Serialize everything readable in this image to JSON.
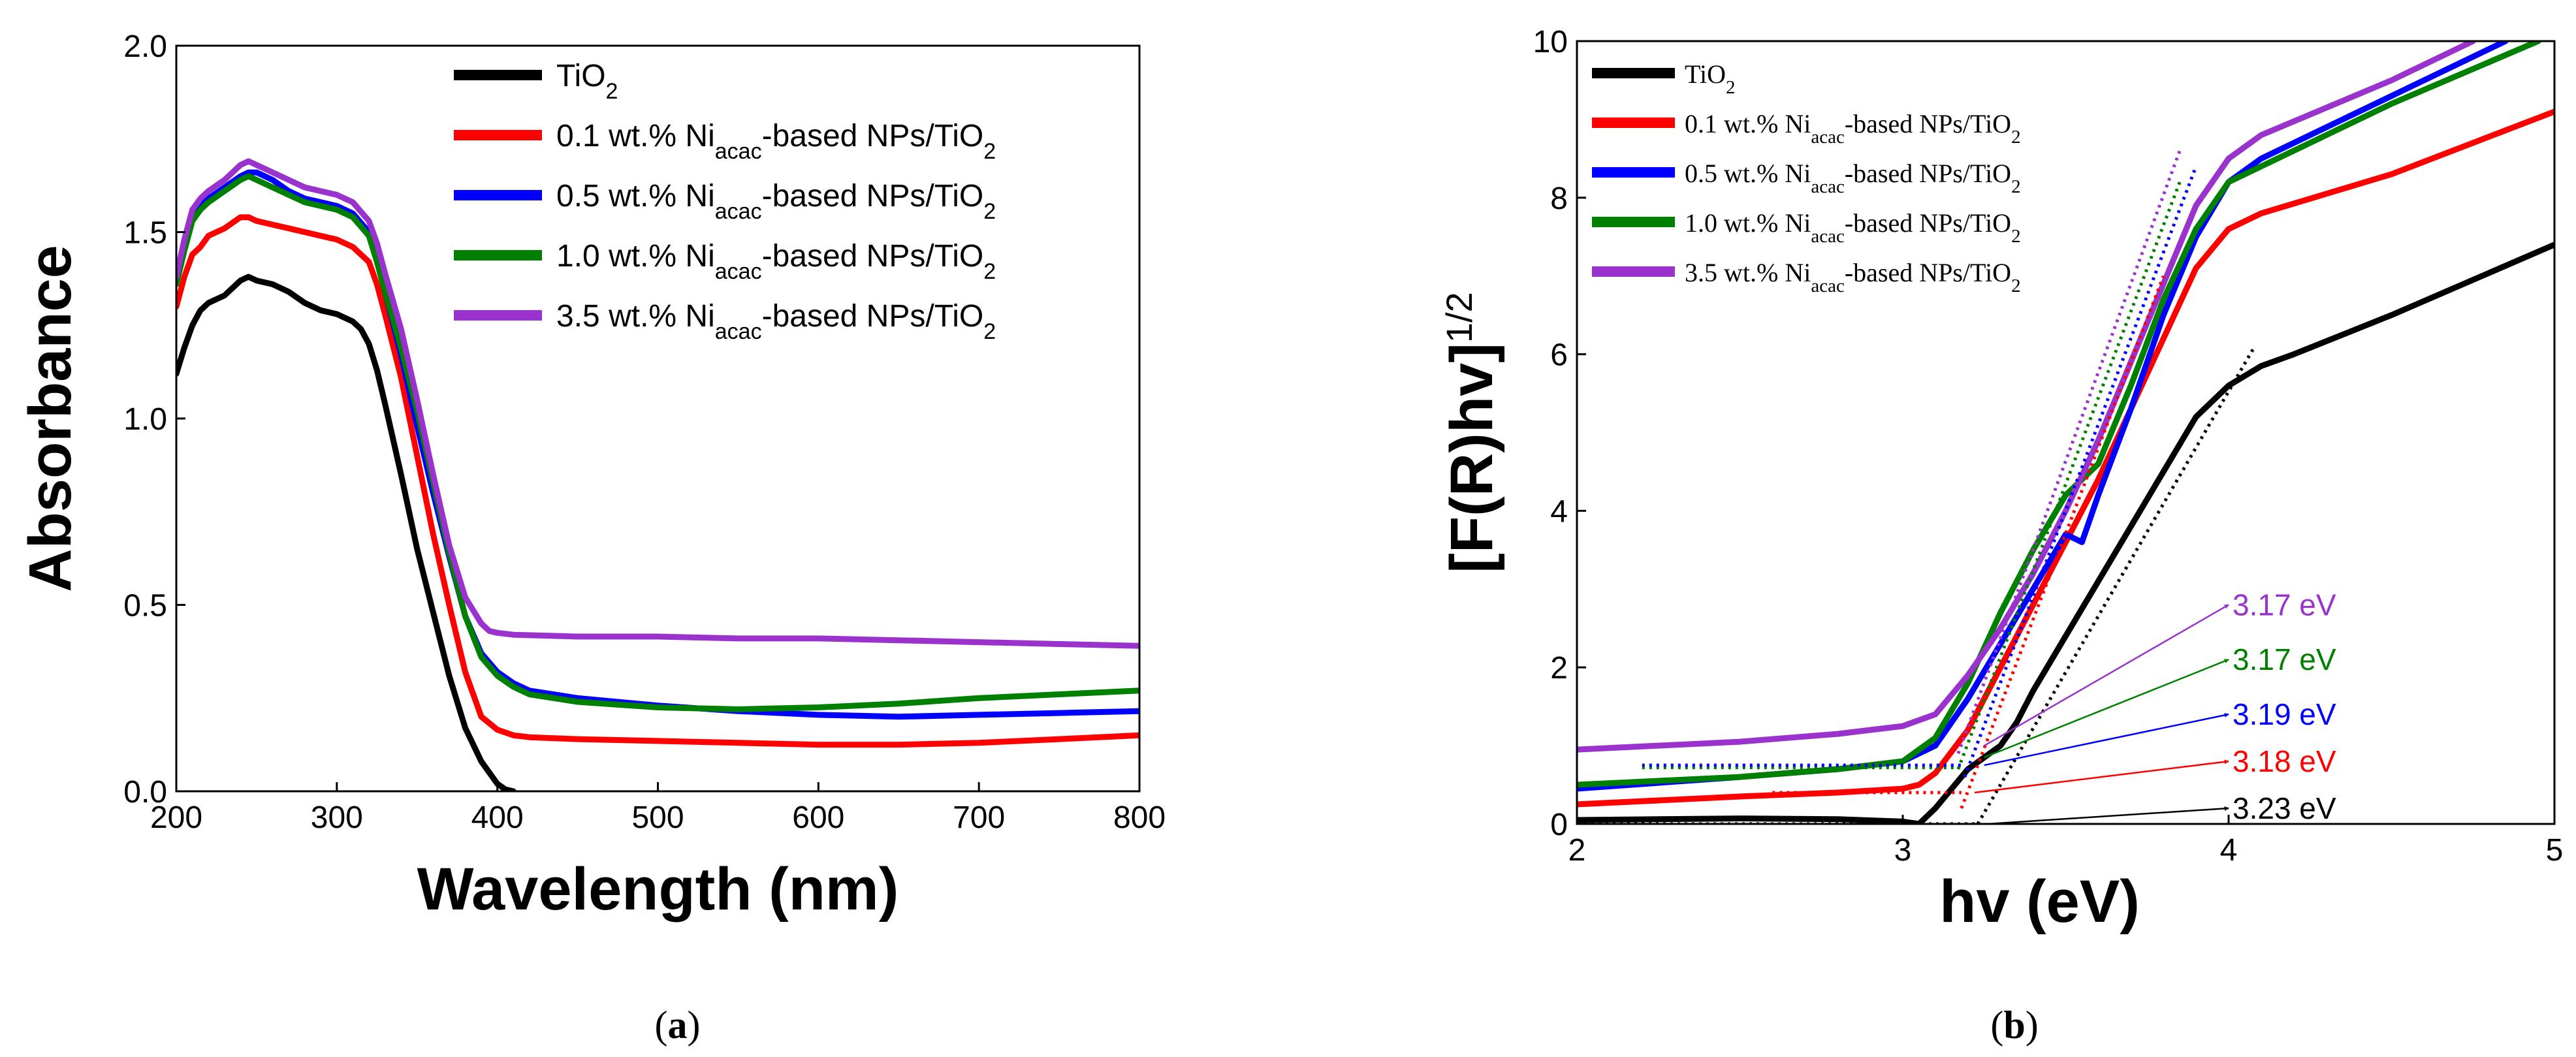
{
  "chart_data": [
    {
      "id": "a",
      "panel_label": "(a)",
      "panel_label_parts": [
        "(",
        "a",
        ")"
      ],
      "type": "line",
      "title": "",
      "xlabel": "Wavelength (nm)",
      "ylabel": "Absorbance",
      "xlim": [
        200,
        800
      ],
      "ylim": [
        0,
        2.0
      ],
      "xticks": [
        200,
        300,
        400,
        500,
        600,
        700,
        800
      ],
      "yticks": [
        0.0,
        0.5,
        1.0,
        1.5,
        2.0
      ],
      "xtick_labels": [
        "200",
        "300",
        "400",
        "500",
        "600",
        "700",
        "800"
      ],
      "ytick_labels": [
        "0.0",
        "0.5",
        "1.0",
        "1.5",
        "2.0"
      ],
      "legend_position": "top-right",
      "series": [
        {
          "name": "TiO2",
          "label": {
            "pre": "TiO",
            "sub1": "2",
            "mid": "",
            "sub2": ""
          },
          "color": "#000000",
          "x": [
            200,
            205,
            210,
            215,
            220,
            230,
            240,
            245,
            250,
            260,
            270,
            280,
            290,
            300,
            310,
            315,
            320,
            325,
            330,
            340,
            350,
            360,
            370,
            380,
            390,
            400,
            405,
            410
          ],
          "y": [
            1.12,
            1.19,
            1.25,
            1.29,
            1.31,
            1.33,
            1.37,
            1.38,
            1.37,
            1.36,
            1.34,
            1.31,
            1.29,
            1.28,
            1.26,
            1.24,
            1.2,
            1.13,
            1.04,
            0.85,
            0.65,
            0.48,
            0.31,
            0.17,
            0.08,
            0.02,
            0.005,
            0.0
          ]
        },
        {
          "name": "0.1 wt.% Niacac-based NPs/TiO2",
          "label": {
            "pre": "0.1 wt.% Ni",
            "sub1": "acac",
            "mid": "-based NPs/TiO",
            "sub2": "2"
          },
          "color": "#ff0000",
          "x": [
            200,
            205,
            210,
            215,
            220,
            230,
            240,
            245,
            250,
            260,
            270,
            280,
            290,
            300,
            310,
            320,
            325,
            330,
            340,
            350,
            360,
            370,
            380,
            390,
            400,
            410,
            420,
            450,
            500,
            550,
            600,
            650,
            700,
            750,
            800
          ],
          "y": [
            1.3,
            1.38,
            1.44,
            1.46,
            1.49,
            1.51,
            1.54,
            1.54,
            1.53,
            1.52,
            1.51,
            1.5,
            1.49,
            1.48,
            1.46,
            1.42,
            1.36,
            1.28,
            1.11,
            0.9,
            0.69,
            0.5,
            0.32,
            0.2,
            0.165,
            0.15,
            0.145,
            0.14,
            0.135,
            0.13,
            0.125,
            0.125,
            0.13,
            0.14,
            0.15
          ]
        },
        {
          "name": "0.5 wt.% Niacac-based NPs/TiO2",
          "label": {
            "pre": "0.5 wt.% Ni",
            "sub1": "acac",
            "mid": "-based NPs/TiO",
            "sub2": "2"
          },
          "color": "#0000ff",
          "x": [
            200,
            205,
            210,
            215,
            220,
            230,
            240,
            245,
            250,
            260,
            270,
            280,
            290,
            300,
            310,
            320,
            325,
            330,
            340,
            350,
            360,
            370,
            380,
            390,
            400,
            410,
            420,
            450,
            500,
            550,
            600,
            650,
            700,
            750,
            800
          ],
          "y": [
            1.37,
            1.46,
            1.54,
            1.57,
            1.59,
            1.62,
            1.65,
            1.66,
            1.66,
            1.64,
            1.61,
            1.59,
            1.58,
            1.57,
            1.55,
            1.5,
            1.43,
            1.34,
            1.17,
            0.98,
            0.8,
            0.63,
            0.47,
            0.37,
            0.32,
            0.29,
            0.27,
            0.25,
            0.23,
            0.215,
            0.205,
            0.2,
            0.205,
            0.21,
            0.215
          ]
        },
        {
          "name": "1.0 wt.% Niacac-based NPs/TiO2",
          "label": {
            "pre": "1.0 wt.% Ni",
            "sub1": "acac",
            "mid": "-based NPs/TiO",
            "sub2": "2"
          },
          "color": "#008000",
          "x": [
            200,
            205,
            210,
            215,
            220,
            230,
            240,
            245,
            250,
            260,
            270,
            280,
            290,
            300,
            310,
            320,
            325,
            330,
            340,
            350,
            360,
            370,
            380,
            390,
            400,
            410,
            420,
            450,
            500,
            550,
            600,
            650,
            700,
            750,
            800
          ],
          "y": [
            1.36,
            1.45,
            1.53,
            1.56,
            1.58,
            1.61,
            1.64,
            1.65,
            1.64,
            1.62,
            1.6,
            1.58,
            1.57,
            1.56,
            1.54,
            1.49,
            1.42,
            1.34,
            1.19,
            1.02,
            0.83,
            0.64,
            0.47,
            0.36,
            0.31,
            0.28,
            0.26,
            0.24,
            0.225,
            0.22,
            0.225,
            0.235,
            0.25,
            0.26,
            0.27
          ]
        },
        {
          "name": "3.5 wt.% Niacac-based NPs/TiO2",
          "label": {
            "pre": "3.5 wt.% Ni",
            "sub1": "acac",
            "mid": "-based NPs/TiO",
            "sub2": "2"
          },
          "color": "#9a32cd",
          "x": [
            200,
            205,
            210,
            215,
            220,
            230,
            240,
            245,
            250,
            260,
            270,
            280,
            290,
            300,
            310,
            320,
            325,
            330,
            340,
            350,
            360,
            370,
            380,
            390,
            395,
            400,
            410,
            450,
            500,
            550,
            600,
            650,
            700,
            750,
            800
          ],
          "y": [
            1.38,
            1.48,
            1.56,
            1.59,
            1.61,
            1.64,
            1.68,
            1.69,
            1.68,
            1.66,
            1.64,
            1.62,
            1.61,
            1.6,
            1.58,
            1.53,
            1.47,
            1.39,
            1.24,
            1.05,
            0.85,
            0.66,
            0.52,
            0.45,
            0.43,
            0.425,
            0.42,
            0.415,
            0.415,
            0.41,
            0.41,
            0.405,
            0.4,
            0.395,
            0.39
          ]
        }
      ]
    },
    {
      "id": "b",
      "panel_label": "(b)",
      "panel_label_parts": [
        "(",
        "b",
        ")"
      ],
      "type": "line",
      "title": "",
      "xlabel": "hv (eV)",
      "ylabel": {
        "main": "[F(R)hv]",
        "sup": "1/2"
      },
      "xlim": [
        2,
        5
      ],
      "ylim": [
        0,
        10
      ],
      "xticks": [
        2,
        3,
        4,
        5
      ],
      "yticks": [
        0,
        2,
        4,
        6,
        8,
        10
      ],
      "xtick_labels": [
        "2",
        "3",
        "4",
        "5"
      ],
      "ytick_labels": [
        "0",
        "2",
        "4",
        "6",
        "8",
        "10"
      ],
      "legend_position": "top-left",
      "series": [
        {
          "name": "TiO2",
          "label": {
            "pre": "TiO",
            "sub1": "2",
            "mid": "",
            "sub2": ""
          },
          "color": "#000000",
          "x": [
            2.0,
            2.5,
            2.8,
            3.0,
            3.05,
            3.1,
            3.2,
            3.3,
            3.35,
            3.4,
            3.5,
            3.6,
            3.7,
            3.8,
            3.9,
            4.0,
            4.1,
            4.2,
            4.5,
            5.0
          ],
          "y": [
            0.05,
            0.07,
            0.06,
            0.03,
            0.0,
            0.2,
            0.7,
            1.0,
            1.3,
            1.7,
            2.4,
            3.1,
            3.8,
            4.5,
            5.2,
            5.6,
            5.85,
            6.0,
            6.5,
            7.4
          ]
        },
        {
          "name": "0.1 wt.% Niacac-based NPs/TiO2",
          "label": {
            "pre": "0.1 wt.% Ni",
            "sub1": "acac",
            "mid": "-based NPs/TiO",
            "sub2": "2"
          },
          "color": "#ff0000",
          "x": [
            2.0,
            2.5,
            2.8,
            3.0,
            3.05,
            3.1,
            3.2,
            3.3,
            3.4,
            3.5,
            3.6,
            3.7,
            3.8,
            3.9,
            4.0,
            4.1,
            4.5,
            5.0
          ],
          "y": [
            0.25,
            0.35,
            0.4,
            0.45,
            0.5,
            0.65,
            1.2,
            2.0,
            2.8,
            3.6,
            4.4,
            5.3,
            6.2,
            7.1,
            7.6,
            7.8,
            8.3,
            9.1
          ]
        },
        {
          "name": "0.5 wt.% Niacac-based NPs/TiO2",
          "label": {
            "pre": "0.5 wt.% Ni",
            "sub1": "acac",
            "mid": "-based NPs/TiO",
            "sub2": "2"
          },
          "color": "#0000ff",
          "x": [
            2.0,
            2.5,
            2.8,
            3.0,
            3.1,
            3.2,
            3.3,
            3.4,
            3.5,
            3.55,
            3.6,
            3.7,
            3.8,
            3.9,
            4.0,
            4.1,
            4.5,
            4.85
          ],
          "y": [
            0.45,
            0.6,
            0.7,
            0.8,
            1.0,
            1.6,
            2.3,
            3.0,
            3.7,
            3.6,
            4.2,
            5.3,
            6.5,
            7.5,
            8.2,
            8.5,
            9.3,
            10.0
          ]
        },
        {
          "name": "1.0 wt.% Niacac-based NPs/TiO2",
          "label": {
            "pre": "1.0 wt.% Ni",
            "sub1": "acac",
            "mid": "-based NPs/TiO",
            "sub2": "2"
          },
          "color": "#008000",
          "x": [
            2.0,
            2.5,
            2.8,
            3.0,
            3.1,
            3.2,
            3.3,
            3.4,
            3.5,
            3.55,
            3.6,
            3.7,
            3.8,
            3.9,
            4.0,
            4.1,
            4.5,
            4.95
          ],
          "y": [
            0.5,
            0.6,
            0.7,
            0.8,
            1.1,
            1.8,
            2.7,
            3.5,
            4.2,
            4.4,
            4.6,
            5.6,
            6.7,
            7.6,
            8.2,
            8.4,
            9.2,
            10.0
          ]
        },
        {
          "name": "3.5 wt.% Niacac-based NPs/TiO2",
          "label": {
            "pre": "3.5 wt.% Ni",
            "sub1": "acac",
            "mid": "-based NPs/TiO",
            "sub2": "2"
          },
          "color": "#9a32cd",
          "x": [
            2.0,
            2.5,
            2.8,
            3.0,
            3.1,
            3.2,
            3.3,
            3.4,
            3.5,
            3.6,
            3.7,
            3.8,
            3.9,
            4.0,
            4.1,
            4.5,
            4.75
          ],
          "y": [
            0.95,
            1.05,
            1.15,
            1.25,
            1.4,
            1.9,
            2.5,
            3.2,
            4.0,
            4.9,
            5.9,
            6.9,
            7.9,
            8.5,
            8.8,
            9.5,
            10.0
          ]
        }
      ],
      "fit_lines": [
        {
          "series": "3.5 wt.%",
          "color": "#9a32cd",
          "x": [
            3.17,
            3.85
          ],
          "y": [
            0.9,
            8.6
          ]
        },
        {
          "series": "1.0 wt.%",
          "color": "#008000",
          "x": [
            3.17,
            3.85
          ],
          "y": [
            0.7,
            8.2
          ]
        },
        {
          "series": "0.5 wt.%",
          "color": "#0000ff",
          "x": [
            3.19,
            3.9
          ],
          "y": [
            0.6,
            8.4
          ]
        },
        {
          "series": "0.1 wt.%",
          "color": "#ff0000",
          "x": [
            3.18,
            3.8
          ],
          "y": [
            0.2,
            7.0
          ]
        },
        {
          "series": "TiO2",
          "color": "#000000",
          "x": [
            3.23,
            4.08
          ],
          "y": [
            0.0,
            6.1
          ]
        }
      ],
      "baselines": [
        {
          "color": "#008000",
          "x": [
            2.2,
            3.17
          ],
          "y": [
            0.72,
            0.72
          ]
        },
        {
          "color": "#0000ff",
          "x": [
            2.2,
            3.19
          ],
          "y": [
            0.75,
            0.75
          ]
        },
        {
          "color": "#ff0000",
          "x": [
            2.6,
            3.18
          ],
          "y": [
            0.4,
            0.4
          ]
        },
        {
          "color": "#000000",
          "x": [
            2.0,
            3.23
          ],
          "y": [
            0.0,
            0.0
          ]
        }
      ],
      "annotations": [
        {
          "text": "3.17 eV",
          "color": "#9a32cd",
          "from": [
            3.25,
            1.0
          ],
          "to": [
            4.0,
            2.8
          ]
        },
        {
          "text": "3.17 eV",
          "color": "#008000",
          "from": [
            3.25,
            0.85
          ],
          "to": [
            4.0,
            2.1
          ]
        },
        {
          "text": "3.19 eV",
          "color": "#0000ff",
          "from": [
            3.25,
            0.75
          ],
          "to": [
            4.0,
            1.4
          ]
        },
        {
          "text": "3.18 eV",
          "color": "#ff0000",
          "from": [
            3.22,
            0.4
          ],
          "to": [
            4.0,
            0.8
          ]
        },
        {
          "text": "3.23 eV",
          "color": "#000000",
          "from": [
            3.26,
            0.0
          ],
          "to": [
            4.0,
            0.2
          ]
        }
      ]
    }
  ]
}
